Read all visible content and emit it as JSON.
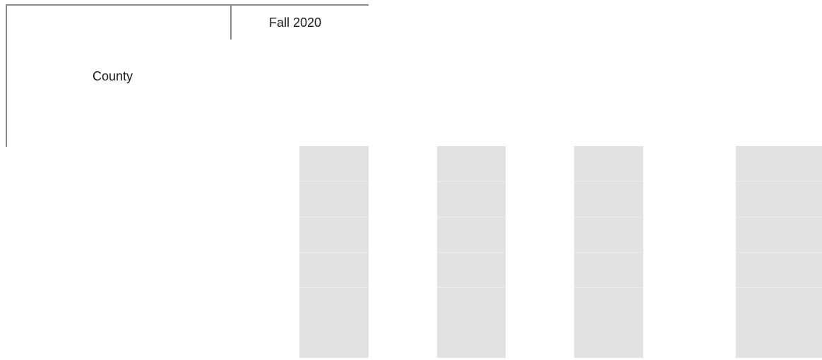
{
  "table": {
    "header": {
      "row_header_label": "County",
      "column_group_label": "Fall 2020"
    },
    "loading_placeholder": {
      "columns": 4,
      "rows_per_column": 5
    }
  }
}
